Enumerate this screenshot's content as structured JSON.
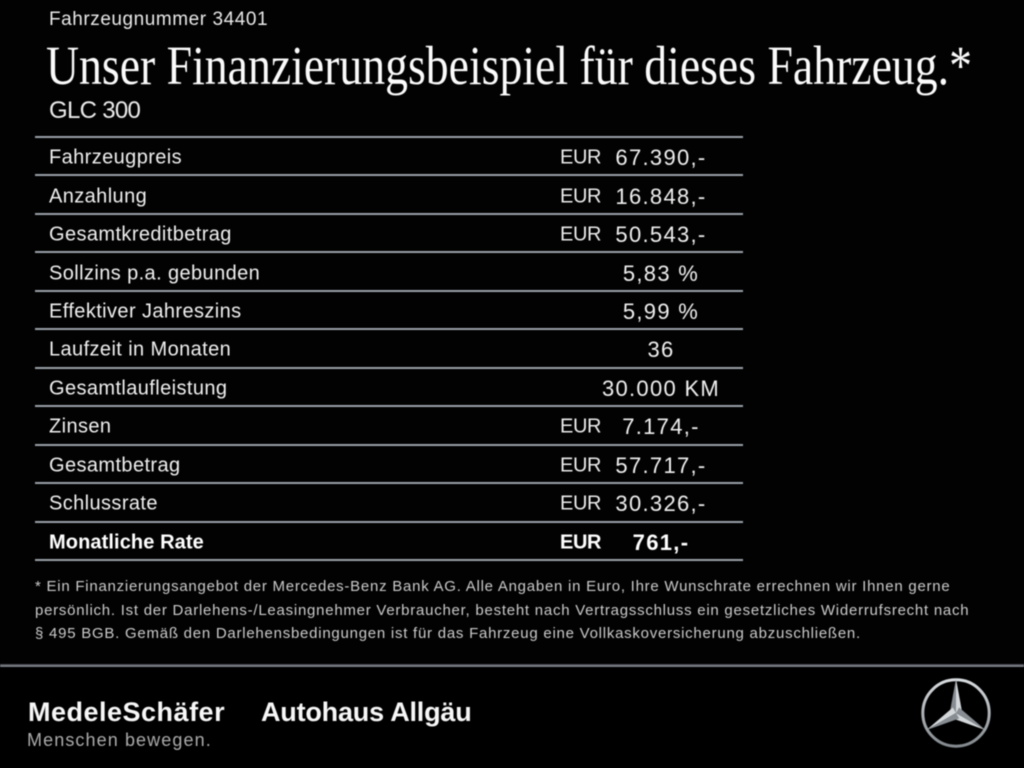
{
  "page": {
    "vehicle_number": "Fahrzeugnummer 34401",
    "headline": "Unser Finanzierungsbeispiel für dieses Fahrzeug.*",
    "model": "GLC 300"
  },
  "table": {
    "rows": [
      {
        "label": "Fahrzeugpreis",
        "currency": "EUR",
        "value": "67.390,-",
        "bold": false
      },
      {
        "label": "Anzahlung",
        "currency": "EUR",
        "value": "16.848,-",
        "bold": false
      },
      {
        "label": "Gesamtkreditbetrag",
        "currency": "EUR",
        "value": "50.543,-",
        "bold": false
      },
      {
        "label": "Sollzins p.a. gebunden",
        "currency": "",
        "value": "5,83 %",
        "bold": false
      },
      {
        "label": "Effektiver Jahreszins",
        "currency": "",
        "value": "5,99 %",
        "bold": false
      },
      {
        "label": "Laufzeit in Monaten",
        "currency": "",
        "value": "36",
        "bold": false
      },
      {
        "label": "Gesamtlaufleistung",
        "currency": "",
        "value": "30.000 KM",
        "bold": false
      },
      {
        "label": "Zinsen",
        "currency": "EUR",
        "value": "7.174,-",
        "bold": false
      },
      {
        "label": "Gesamtbetrag",
        "currency": "EUR",
        "value": "57.717,-",
        "bold": false
      },
      {
        "label": "Schlussrate",
        "currency": "EUR",
        "value": "30.326,-",
        "bold": false
      },
      {
        "label": "Monatliche Rate",
        "currency": "EUR",
        "value": "761,-",
        "bold": true
      }
    ]
  },
  "footnote": {
    "lines": [
      "* Ein Finanzierungsangebot der Mercedes-Benz Bank AG. Alle Angaben in Euro, Ihre Wunschrate errechnen wir Ihnen gerne",
      "persönlich. Ist der Darlehens-/Leasingnehmer Verbraucher, besteht nach Vertragsschluss ein gesetzliches Widerrufsrecht nach",
      "§ 495 BGB. Gemäß den Darlehensbedingungen ist für das Fahrzeug eine Vollkaskoversicherung abzuschließen."
    ]
  },
  "footer": {
    "dealer_logo": "MedeleSchäfer",
    "dealer_tagline": "Menschen bewegen.",
    "dealer_name2": "Autohaus Allgäu",
    "brand_icon": "mercedes-star-icon"
  },
  "colors": {
    "background": "#020202",
    "text": "#f0f0f0",
    "separator": "#99a0a9",
    "footnote": "#cbcbcb",
    "tagline": "#ababab",
    "star": "#c7ccd2"
  }
}
